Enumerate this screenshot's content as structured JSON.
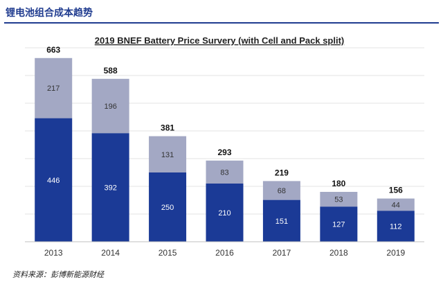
{
  "header": {
    "title": "锂电池组合成本趋势"
  },
  "source_note": "资料来源：彭博新能源财经",
  "chart_data": {
    "type": "bar",
    "stacked": true,
    "title": "2019 BNEF Battery Price Survery (with Cell and Pack split)",
    "categories": [
      "2013",
      "2014",
      "2015",
      "2016",
      "2017",
      "2018",
      "2019"
    ],
    "series": [
      {
        "values": [
          446,
          392,
          250,
          210,
          151,
          127,
          112
        ],
        "color": "#1b3a96"
      },
      {
        "values": [
          217,
          196,
          131,
          83,
          68,
          53,
          44
        ],
        "color": "#a3a8c4"
      }
    ],
    "totals": [
      663,
      588,
      381,
      293,
      219,
      180,
      156
    ],
    "ylim": [
      0,
      700
    ],
    "grid": true,
    "xlabel": "",
    "ylabel": ""
  }
}
